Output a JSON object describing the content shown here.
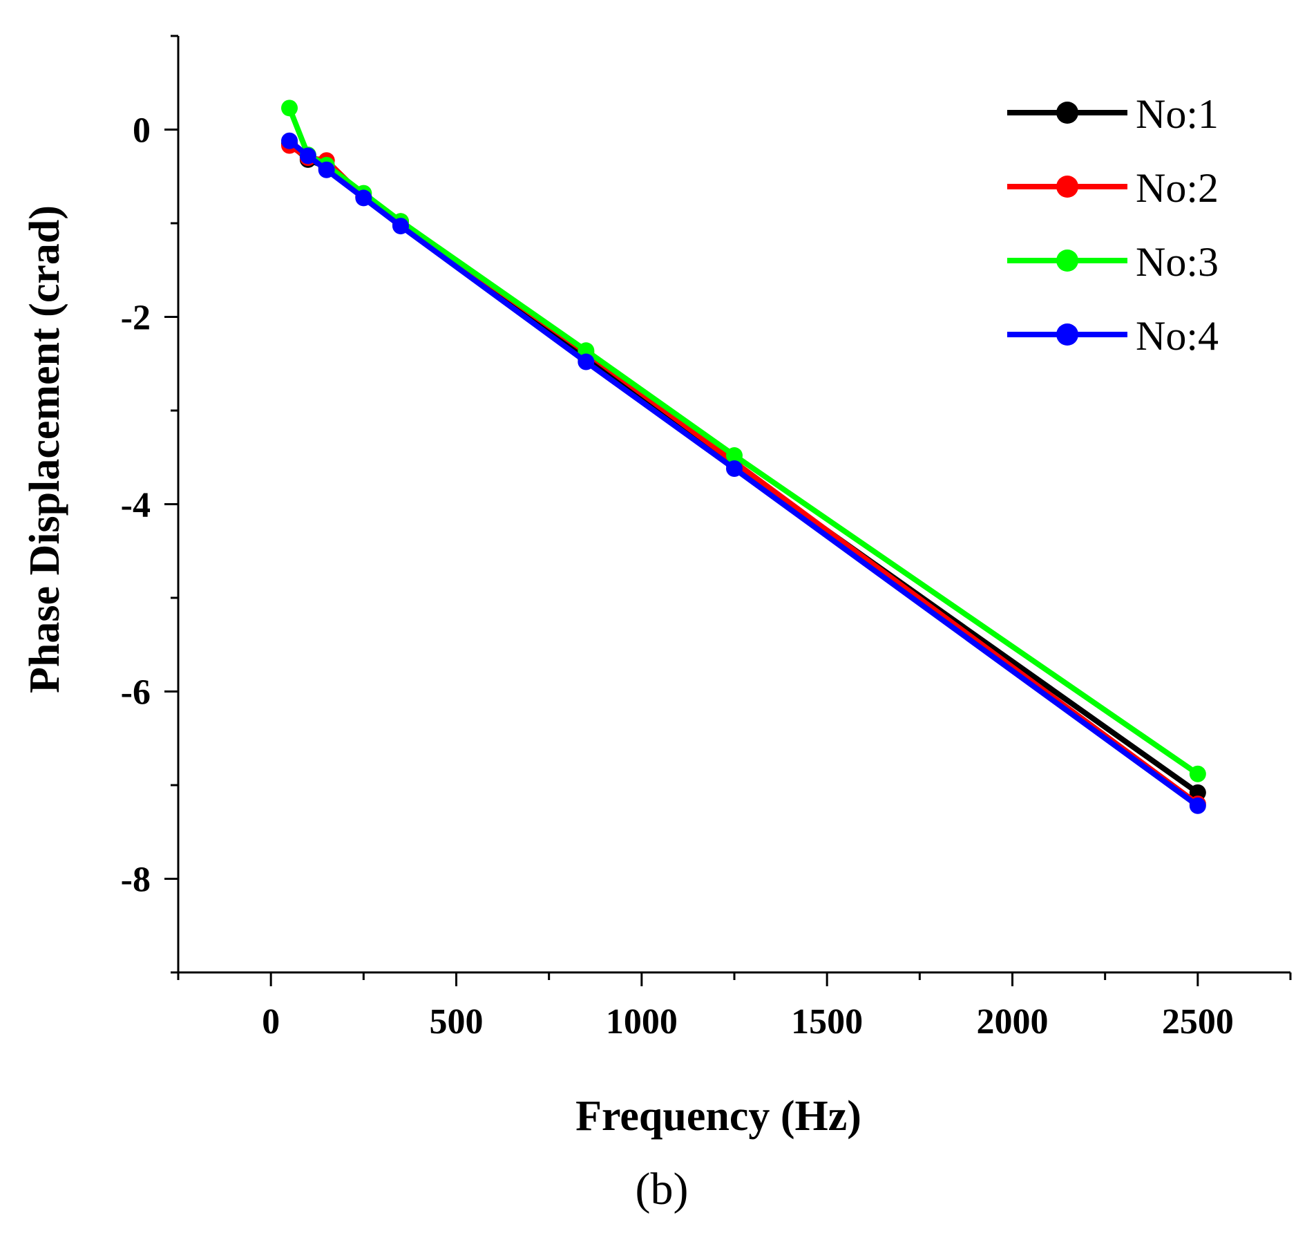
{
  "chart_data": {
    "type": "line",
    "title": "",
    "caption": "(b)",
    "xlabel": "Frequency (Hz)",
    "ylabel": "Phase Displacement (crad)",
    "xlim": [
      -250,
      2750
    ],
    "ylim": [
      -9,
      1
    ],
    "x_ticks": [
      0,
      500,
      1000,
      1500,
      2000,
      2500
    ],
    "x_tick_labels": [
      "0",
      "500",
      "1000",
      "1500",
      "2000",
      "2500"
    ],
    "y_ticks": [
      0,
      -2,
      -4,
      -6,
      -8
    ],
    "y_tick_labels": [
      "0",
      "-2",
      "-4",
      "-6",
      "-8"
    ],
    "grid": false,
    "legend_position": "top-right",
    "x": [
      50,
      100,
      150,
      250,
      350,
      850,
      1250,
      2500
    ],
    "series": [
      {
        "name": "No:1",
        "color": "#000000",
        "values": [
          -0.15,
          -0.32,
          -0.4,
          -0.72,
          -1.02,
          -2.45,
          -3.58,
          -7.08
        ]
      },
      {
        "name": "No:2",
        "color": "#ff0000",
        "values": [
          -0.17,
          -0.3,
          -0.33,
          -0.72,
          -0.98,
          -2.38,
          -3.55,
          -7.2
        ]
      },
      {
        "name": "No:3",
        "color": "#00ff00",
        "values": [
          0.23,
          -0.27,
          -0.38,
          -0.68,
          -0.98,
          -2.36,
          -3.48,
          -6.88
        ]
      },
      {
        "name": "No:4",
        "color": "#0000ff",
        "values": [
          -0.12,
          -0.28,
          -0.43,
          -0.73,
          -1.03,
          -2.48,
          -3.62,
          -7.22
        ]
      }
    ]
  }
}
